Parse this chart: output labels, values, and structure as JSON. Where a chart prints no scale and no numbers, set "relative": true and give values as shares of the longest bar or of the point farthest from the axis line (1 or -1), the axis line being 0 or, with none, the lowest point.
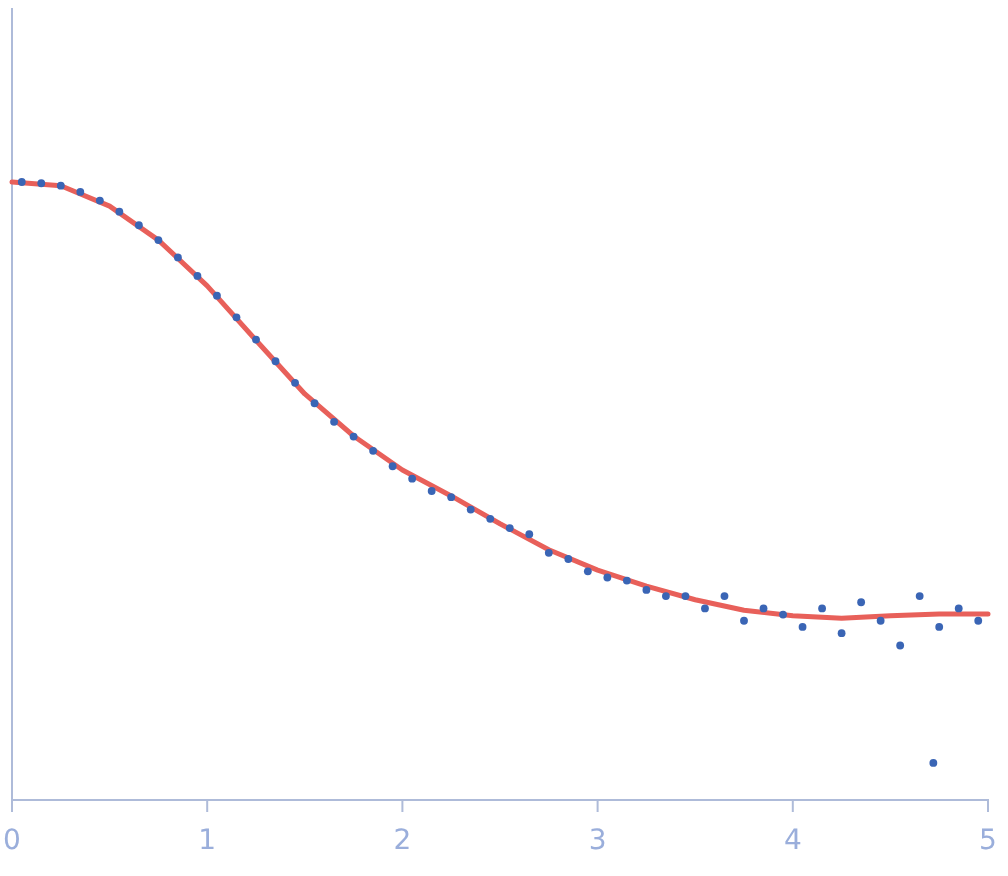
{
  "chart_data": {
    "type": "scatter",
    "relative": true,
    "xlim": [
      0,
      5
    ],
    "xticks": [
      0,
      1,
      2,
      3,
      4,
      5
    ],
    "tick_labels": "x",
    "grid": false,
    "series": [
      {
        "marker": "circle",
        "color": "#3a65b5",
        "x": [
          0.05,
          0.15,
          0.25,
          0.35,
          0.45,
          0.55,
          0.65,
          0.75,
          0.85,
          0.95,
          1.05,
          1.15,
          1.25,
          1.35,
          1.45,
          1.55,
          1.65,
          1.75,
          1.85,
          1.95,
          2.05,
          2.15,
          2.25,
          2.35,
          2.45,
          2.55,
          2.65,
          2.75,
          2.85,
          2.95,
          3.05,
          3.15,
          3.25,
          3.35,
          3.45,
          3.55,
          3.65,
          3.75,
          3.85,
          3.95,
          4.05,
          4.15,
          4.25,
          4.35,
          4.45,
          4.55,
          4.65,
          4.72,
          4.75,
          4.85,
          4.95
        ],
        "values": [
          1.0,
          0.998,
          0.994,
          0.984,
          0.97,
          0.952,
          0.93,
          0.906,
          0.878,
          0.848,
          0.816,
          0.781,
          0.745,
          0.71,
          0.675,
          0.642,
          0.612,
          0.588,
          0.565,
          0.54,
          0.52,
          0.5,
          0.49,
          0.47,
          0.455,
          0.44,
          0.43,
          0.4,
          0.39,
          0.37,
          0.36,
          0.355,
          0.34,
          0.33,
          0.33,
          0.31,
          0.33,
          0.29,
          0.31,
          0.3,
          0.28,
          0.31,
          0.27,
          0.32,
          0.29,
          0.25,
          0.33,
          0.06,
          0.28,
          0.31,
          0.29
        ]
      },
      {
        "type": "line",
        "color": "#e8605a",
        "x": [
          0,
          0.25,
          0.5,
          0.75,
          1,
          1.25,
          1.5,
          1.75,
          2,
          2.25,
          2.5,
          2.75,
          3,
          3.25,
          3.5,
          3.75,
          4,
          4.25,
          4.5,
          4.75,
          5
        ],
        "values": [
          1.0,
          0.994,
          0.961,
          0.906,
          0.832,
          0.744,
          0.657,
          0.589,
          0.534,
          0.492,
          0.447,
          0.405,
          0.372,
          0.346,
          0.324,
          0.307,
          0.298,
          0.294,
          0.298,
          0.301,
          0.301
        ]
      }
    ]
  }
}
